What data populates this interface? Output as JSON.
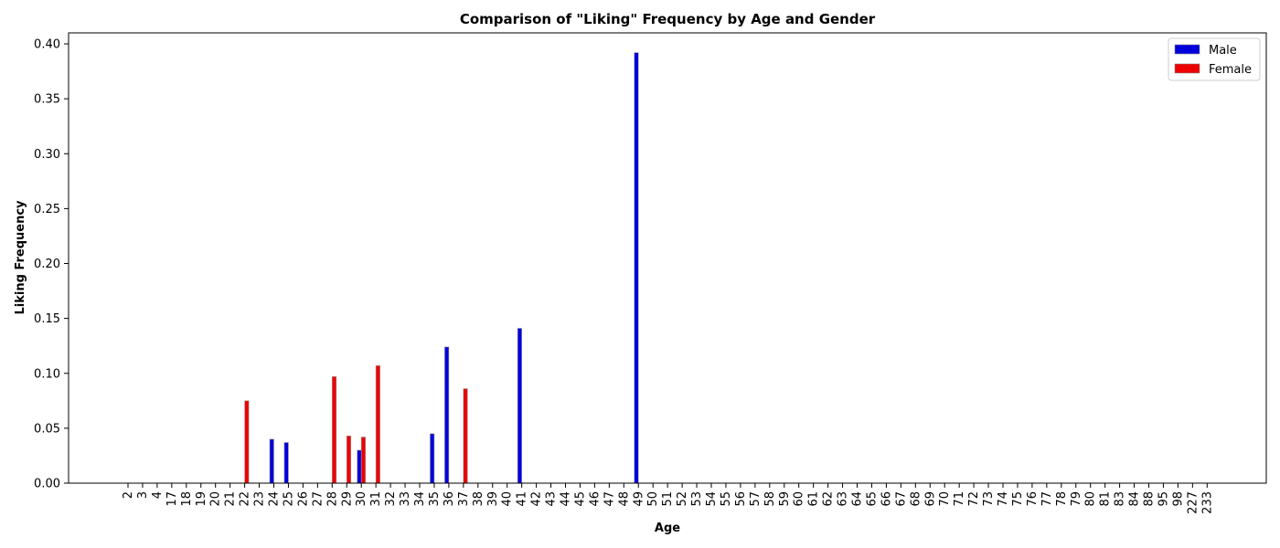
{
  "chart_data": {
    "type": "bar",
    "title": "Comparison of \"Liking\" Frequency by Age and Gender",
    "xlabel": "Age",
    "ylabel": "Liking Frequency",
    "ylim": [
      0,
      0.41
    ],
    "yticks": [
      "0.00",
      "0.05",
      "0.10",
      "0.15",
      "0.20",
      "0.25",
      "0.30",
      "0.35",
      "0.40"
    ],
    "grid": false,
    "legend_position": "top-right",
    "categories": [
      "2",
      "3",
      "4",
      "17",
      "18",
      "19",
      "20",
      "21",
      "22",
      "23",
      "24",
      "25",
      "26",
      "27",
      "28",
      "29",
      "30",
      "31",
      "32",
      "33",
      "34",
      "35",
      "36",
      "37",
      "38",
      "39",
      "40",
      "41",
      "42",
      "43",
      "44",
      "45",
      "46",
      "47",
      "48",
      "49",
      "50",
      "51",
      "52",
      "53",
      "54",
      "55",
      "56",
      "57",
      "58",
      "59",
      "60",
      "61",
      "62",
      "63",
      "64",
      "65",
      "66",
      "67",
      "68",
      "69",
      "70",
      "71",
      "72",
      "73",
      "74",
      "75",
      "76",
      "77",
      "78",
      "79",
      "80",
      "81",
      "83",
      "84",
      "88",
      "95",
      "98",
      "227",
      "233"
    ],
    "series": [
      {
        "name": "Male",
        "color": "#0000dd",
        "values": [
          0,
          0,
          0,
          0,
          0,
          0,
          0,
          0,
          0,
          0,
          0.04,
          0.037,
          0,
          0,
          0,
          0,
          0.03,
          0,
          0,
          0,
          0,
          0.045,
          0.124,
          0,
          0,
          0,
          0,
          0.141,
          0,
          0,
          0,
          0,
          0,
          0,
          0,
          0.392,
          0,
          0,
          0,
          0,
          0,
          0,
          0,
          0,
          0,
          0,
          0,
          0,
          0,
          0,
          0,
          0,
          0,
          0,
          0,
          0,
          0,
          0,
          0,
          0,
          0,
          0,
          0,
          0,
          0,
          0,
          0,
          0,
          0,
          0,
          0,
          0,
          0,
          0,
          0
        ]
      },
      {
        "name": "Female",
        "color": "#ee0000",
        "values": [
          0,
          0,
          0,
          0,
          0,
          0,
          0,
          0,
          0.075,
          0,
          0,
          0,
          0,
          0,
          0.097,
          0.043,
          0.042,
          0.107,
          0,
          0,
          0,
          0,
          0,
          0.086,
          0,
          0,
          0,
          0,
          0,
          0,
          0,
          0,
          0,
          0,
          0,
          0,
          0,
          0,
          0,
          0,
          0,
          0,
          0,
          0,
          0,
          0,
          0,
          0,
          0,
          0,
          0,
          0,
          0,
          0,
          0,
          0,
          0,
          0,
          0,
          0,
          0,
          0,
          0,
          0,
          0,
          0,
          0,
          0,
          0,
          0,
          0,
          0,
          0,
          0,
          0
        ]
      }
    ]
  }
}
